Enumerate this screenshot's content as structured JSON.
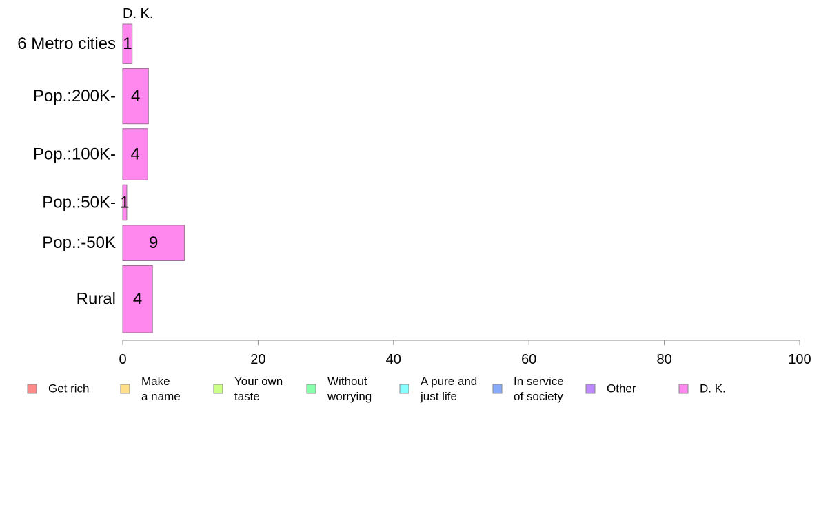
{
  "chart_data": {
    "type": "bar",
    "orientation": "horizontal",
    "panel_title": "D. K.",
    "categories": [
      "6 Metro cities",
      "Pop.:200K-",
      "Pop.:100K-",
      "Pop.:50K-",
      "Pop.:-50K",
      "Rural"
    ],
    "series": [
      {
        "name": "D. K.",
        "color": "#ff88ee",
        "values": [
          1.4,
          3.8,
          3.7,
          0.6,
          9.1,
          4.4
        ],
        "labels": [
          "1",
          "4",
          "4",
          "1",
          "9",
          "4"
        ]
      }
    ],
    "bar_thickness_weights": [
      1.0,
      1.4,
      1.3,
      0.9,
      0.9,
      1.7
    ],
    "xlim": [
      0,
      100
    ],
    "xticks": [
      0,
      20,
      40,
      60,
      80,
      100
    ],
    "xlabel": "",
    "ylabel": "",
    "grid": false,
    "legend": {
      "position": "bottom",
      "items": [
        {
          "name": "Get rich",
          "lines": [
            "Get rich"
          ],
          "color": "#ff8888"
        },
        {
          "name": "Make a name",
          "lines": [
            "Make",
            "a name"
          ],
          "color": "#ffe088"
        },
        {
          "name": "Your own taste",
          "lines": [
            "Your own",
            "taste"
          ],
          "color": "#ccff88"
        },
        {
          "name": "Without worrying",
          "lines": [
            "Without",
            "worrying"
          ],
          "color": "#88ffaa"
        },
        {
          "name": "A pure and just life",
          "lines": [
            "A pure and",
            "just life"
          ],
          "color": "#88ffff"
        },
        {
          "name": "In service of society",
          "lines": [
            "In service",
            "of society"
          ],
          "color": "#88aaff"
        },
        {
          "name": "Other",
          "lines": [
            "Other"
          ],
          "color": "#bb88ff"
        },
        {
          "name": "D. K.",
          "lines": [
            "D. K."
          ],
          "color": "#ff88ee"
        }
      ]
    }
  }
}
